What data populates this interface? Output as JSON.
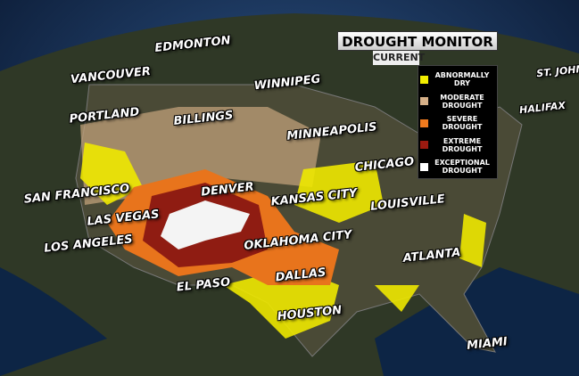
{
  "header": {
    "title": "DROUGHT MONITOR",
    "subtitle": "CURRENT"
  },
  "legend": [
    {
      "label": "ABNORMALLY DRY",
      "color": "#f2ee00"
    },
    {
      "label": "MODERATE DROUGHT",
      "color": "#d6b088"
    },
    {
      "label": "SEVERE DROUGHT",
      "color": "#f07a1e"
    },
    {
      "label": "EXTREME DROUGHT",
      "color": "#9c1a10"
    },
    {
      "label": "EXCEPTIONAL DROUGHT",
      "color": "#ffffff"
    }
  ],
  "cities": [
    "EDMONTON",
    "VANCOUVER",
    "WINNIPEG",
    "PORTLAND",
    "BILLINGS",
    "MINNEAPOLIS",
    "CHICAGO",
    "SAN FRANCISCO",
    "DENVER",
    "KANSAS CITY",
    "LOUISVILLE",
    "LAS VEGAS",
    "OKLAHOMA CITY",
    "LOS ANGELES",
    "ATLANTA",
    "DALLAS",
    "EL PASO",
    "HOUSTON",
    "MIAMI",
    "HALIFAX",
    "ST. JOHN"
  ]
}
